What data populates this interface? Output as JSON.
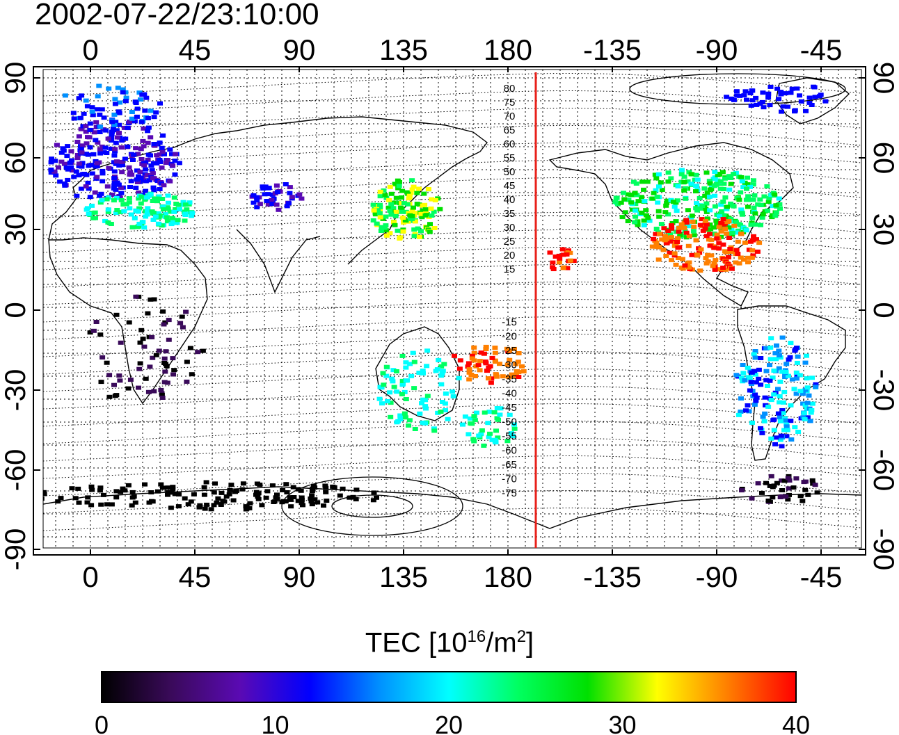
{
  "title": "2002-07-22/23:10:00",
  "map": {
    "top_axis_labels": [
      "0",
      "45",
      "90",
      "135",
      "180",
      "-135",
      "-90",
      "-45"
    ],
    "bottom_axis_labels": [
      "0",
      "45",
      "90",
      "135",
      "180",
      "-135",
      "-90",
      "-45"
    ],
    "left_axis_labels": [
      "90",
      "60",
      "30",
      "0",
      "-30",
      "-60",
      "-90"
    ],
    "right_axis_labels": [
      "90",
      "60",
      "30",
      "0",
      "-30",
      "-60",
      "-90"
    ],
    "north_contour_labels": [
      "80",
      "75",
      "70",
      "65",
      "60",
      "55",
      "50",
      "45",
      "40",
      "35",
      "30",
      "25",
      "20",
      "15"
    ],
    "south_contour_labels": [
      "-15",
      "-20",
      "-25",
      "-30",
      "-35",
      "-40",
      "-45",
      "-50",
      "-55",
      "-60",
      "-65",
      "-70",
      "-75"
    ],
    "terminator_color": "#e8201a"
  },
  "colorbar": {
    "label_prefix": "TEC  [10",
    "label_sup1": "16",
    "label_mid": "/m",
    "label_sup2": "2",
    "label_suffix": "]",
    "tick_labels": [
      "0",
      "10",
      "20",
      "30",
      "40"
    ],
    "stops": [
      "#000000",
      "#3a0a5a",
      "#5a0ab4",
      "#0000ff",
      "#0090ff",
      "#00ffff",
      "#00ff60",
      "#00e000",
      "#ffff00",
      "#ff8000",
      "#ff0000"
    ]
  }
}
